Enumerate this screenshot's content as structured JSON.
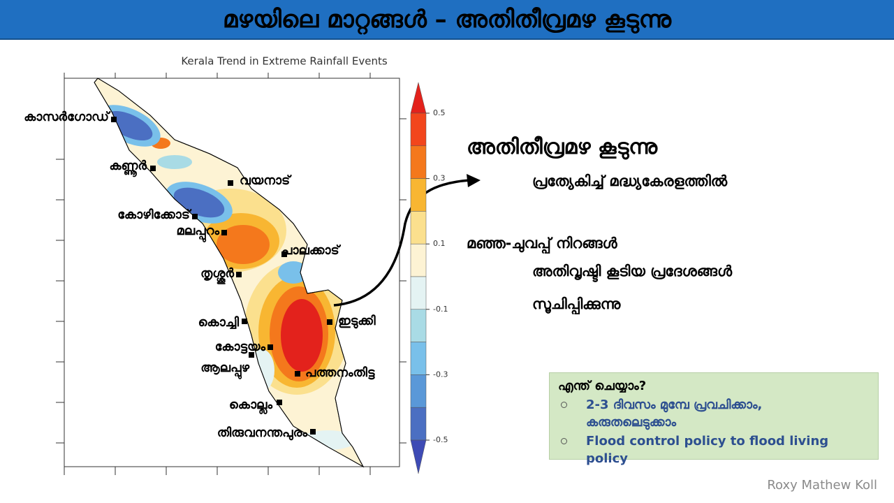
{
  "header": {
    "title": "മഴയിലെ മാറ്റങ്ങൾ – അതിതീവ്രമഴ കൂടുന്നു"
  },
  "map": {
    "title": "Kerala Trend in Extreme Rainfall Events",
    "districts": [
      "കാസർഗോഡ്",
      "കണ്ണൂർ",
      "വയനാട്",
      "കോഴിക്കോട്",
      "മലപ്പുറം",
      "പാലക്കാട്",
      "തൃശ്ശൂർ",
      "കൊച്ചി",
      "ഇടുക്കി",
      "കോട്ടയം",
      "ആലപ്പുഴ",
      "പത്തനംതിട്ട",
      "കൊല്ലം",
      "തിരുവനന്തപുരം"
    ],
    "colorbar": {
      "ticks": [
        0.5,
        0.3,
        0.1,
        -0.1,
        -0.3,
        -0.5
      ],
      "colors": [
        "#e3221c",
        "#f2461c",
        "#f4781c",
        "#f8b632",
        "#fbe08e",
        "#fdf3d4",
        "#e4f3f3",
        "#a9dbe5",
        "#79c0ea",
        "#5a98d8",
        "#4b6fc2",
        "#3e4bb5"
      ]
    }
  },
  "notes": {
    "heading": "അതിതീവ്രമഴ കൂടുന്നു",
    "subheading": "പ്രത്യേകിച്ച് മദ്ധ്യകേരളത്തിൽ",
    "legend_lines": [
      "മഞ്ഞ-ചുവപ്പ് നിറങ്ങൾ",
      "അതിവൃഷ്ടി കൂടിയ പ്രദേശങ്ങൾ",
      "സൂചിപ്പിക്കുന്നു"
    ]
  },
  "box": {
    "heading": "എന്ത് ചെയ്യാം?",
    "items": [
      [
        "2-3 ദിവസം മുമ്പേ പ്രവചിക്കാം,",
        "കരുതലെടുക്കാം"
      ],
      [
        "Flood control policy to flood living policy"
      ]
    ]
  },
  "credit": "Roxy Mathew Koll"
}
